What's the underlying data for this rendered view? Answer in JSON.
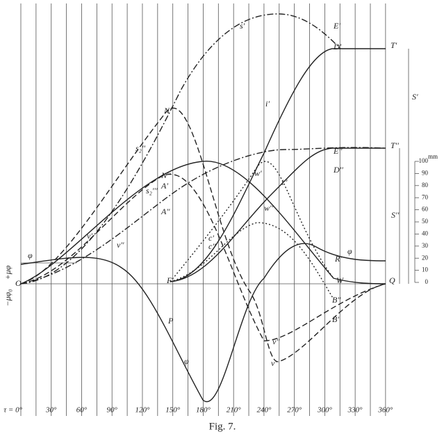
{
  "figure": {
    "caption": "Fig. 7.",
    "x_ticks": [
      "τ = 0°",
      "30°",
      "60°",
      "90°",
      "120°",
      "150°",
      "180°",
      "210°",
      "240°",
      "270°",
      "300°",
      "330°",
      "360°"
    ],
    "left_labels": [
      "+μφ",
      "−μφ₀"
    ],
    "scale": {
      "unit": "mm",
      "ticks": [
        0,
        10,
        20,
        30,
        40,
        50,
        60,
        70,
        80,
        90,
        100
      ]
    },
    "curve_labels": [
      "E'",
      "D'",
      "T'",
      "s'",
      "i'",
      "N'",
      "s₂''",
      "N''",
      "A'",
      "s₂'''",
      "E''",
      "D''",
      "T''",
      "S'",
      "S''",
      "w'",
      "w''",
      "i''",
      "ν'",
      "ν''",
      "F",
      "P",
      "φ",
      "φ",
      "φ",
      "O",
      "Q",
      "W",
      "R'",
      "B''",
      "B'",
      "c'",
      "c''",
      "A''",
      "ν''",
      "ν'"
    ]
  }
}
